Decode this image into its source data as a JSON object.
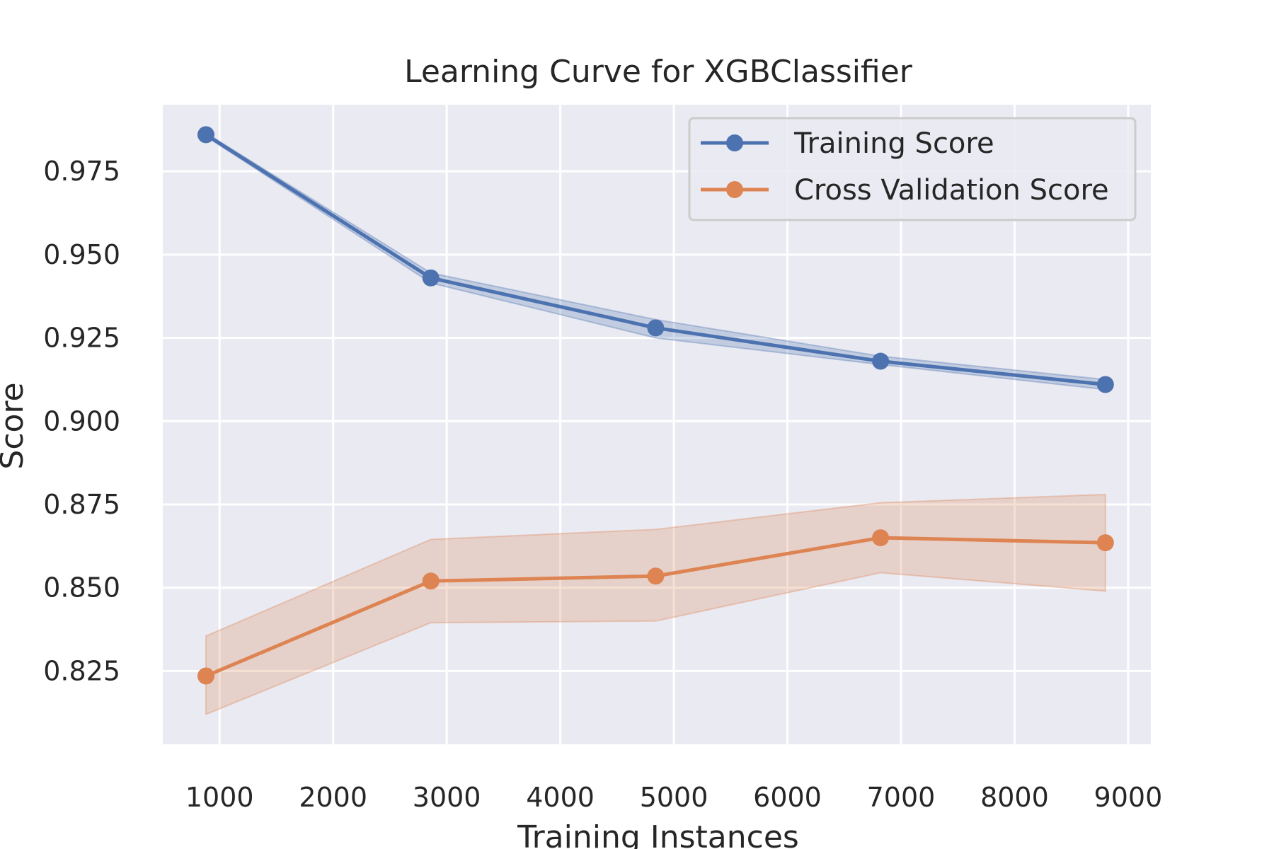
{
  "chart_data": {
    "type": "line",
    "title": "Learning Curve for XGBClassifier",
    "xlabel": "Training Instances",
    "ylabel": "Score",
    "xlim": [
      500,
      9200
    ],
    "ylim": [
      0.803,
      0.995
    ],
    "xticks": [
      1000,
      2000,
      3000,
      4000,
      5000,
      6000,
      7000,
      8000,
      9000
    ],
    "yticks": [
      0.825,
      0.85,
      0.875,
      0.9,
      0.925,
      0.95,
      0.975
    ],
    "xtick_labels": [
      "1000",
      "2000",
      "3000",
      "4000",
      "5000",
      "6000",
      "7000",
      "8000",
      "9000"
    ],
    "ytick_labels": [
      "0.825",
      "0.850",
      "0.875",
      "0.900",
      "0.925",
      "0.950",
      "0.975"
    ],
    "grid": true,
    "legend_position": "top-right",
    "x": [
      880,
      2860,
      4840,
      6820,
      8800
    ],
    "series": [
      {
        "name": "Training Score",
        "color": "#4c72b0",
        "values": [
          0.986,
          0.943,
          0.928,
          0.918,
          0.911
        ],
        "lower": [
          0.9855,
          0.9415,
          0.925,
          0.917,
          0.9095
        ],
        "upper": [
          0.9865,
          0.9445,
          0.9305,
          0.9195,
          0.9125
        ]
      },
      {
        "name": "Cross Validation Score",
        "color": "#dd8452",
        "values": [
          0.8235,
          0.852,
          0.8535,
          0.865,
          0.8635
        ],
        "lower": [
          0.812,
          0.8395,
          0.84,
          0.8545,
          0.849
        ],
        "upper": [
          0.8355,
          0.8645,
          0.8675,
          0.8755,
          0.878
        ]
      }
    ],
    "background_color": "#eaeaf2",
    "grid_color": "#ffffff"
  }
}
